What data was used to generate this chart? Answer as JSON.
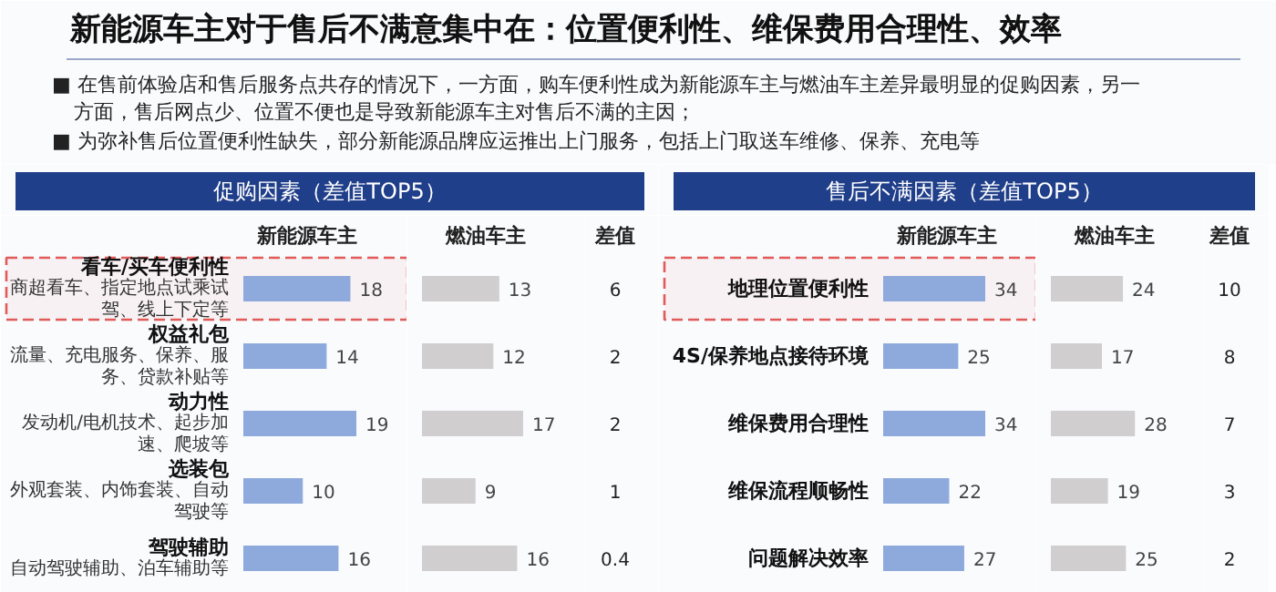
{
  "chart_data": [
    {
      "type": "other",
      "title": "新能源车主对于售后不满意集中在：位置便利性、维保费用合理性、效率",
      "annotations": [
        "■ 在售前体验店和售后服务点共存的情况下，一方面，购车便利性成为新能源车主与燃油车主差异最明显的促购因素，另一方面，售后网点少、位置不便也是导致新能源车主对售后不满的主因；",
        "■ 为弥补售后位置便利性缺失，部分新能源品牌应运推出上门服务，包括上门取送车维修、保养、充电等"
      ]
    },
    {
      "type": "other",
      "title": "促购因素（差值TOP5）"
    },
    {
      "type": "bar",
      "orientation": "horizontal",
      "title": "新能源车主",
      "data_labels": true,
      "color": "#8eaadc",
      "categories": [
        "看车/买车便利性",
        "权益礼包",
        "动力性",
        "选装包",
        "驾驶辅助"
      ],
      "values": [
        18,
        14,
        19,
        10,
        16
      ],
      "annotations": [
        "商超看车、指定地点试乘试驾、线上下定等",
        "流量、充电服务、保养、服务、贷款补贴等",
        "发动机/电机技术、起步加速、爬坡等",
        "外观套装、内饰套装、自动驾驶等",
        "自动驾驶辅助、泊车辅助等"
      ],
      "bands": [
        {
          "axis": "y",
          "from": "看车/买车便利性",
          "to": "看车/买车便利性",
          "color": "#e05a5a"
        }
      ]
    },
    {
      "type": "bar",
      "orientation": "horizontal",
      "title": "燃油车主",
      "data_labels": true,
      "color": "#d0cece",
      "tick_labels": false,
      "values": [
        13,
        12,
        17,
        9,
        16
      ]
    },
    {
      "type": "other",
      "title": "差值",
      "data_labels": true,
      "values": [
        6,
        2,
        2,
        1,
        0.4
      ]
    },
    {
      "type": "other",
      "title": "售后不满因素（差值TOP5）"
    },
    {
      "type": "bar",
      "orientation": "horizontal",
      "title": "新能源车主",
      "data_labels": true,
      "color": "#8eaadc",
      "categories": [
        "地理位置便利性",
        "4S/保养地点接待环境",
        "维保费用合理性",
        "维保流程顺畅性",
        "问题解决效率"
      ],
      "values": [
        34,
        25,
        34,
        22,
        27
      ],
      "bands": [
        {
          "axis": "y",
          "from": "地理位置便利性",
          "to": "地理位置便利性",
          "color": "#e05a5a"
        }
      ]
    },
    {
      "type": "bar",
      "orientation": "horizontal",
      "title": "燃油车主",
      "data_labels": true,
      "color": "#d0cece",
      "tick_labels": false,
      "values": [
        24,
        17,
        28,
        19,
        25
      ]
    },
    {
      "type": "other",
      "title": "差值",
      "data_labels": true,
      "values": [
        10,
        8,
        7,
        3,
        2
      ]
    }
  ]
}
